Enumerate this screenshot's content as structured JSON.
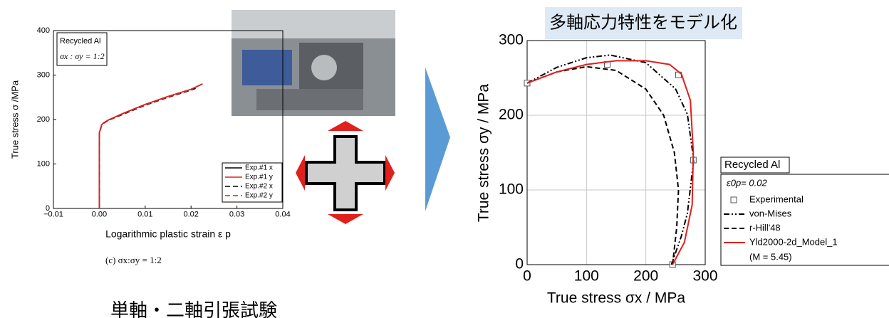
{
  "chart_data": [
    {
      "type": "line",
      "title": "Recycled Al",
      "subtitle": "σx : σy = 1:2",
      "x_label": "Logarithmic plastic strain ε p",
      "y_label": "True stress σ /MPa",
      "caption": "(c) σx:σy = 1:2",
      "xlim": [
        -0.01,
        0.04
      ],
      "xticks": [
        {
          "value": -0.01,
          "label": "−0.01"
        },
        {
          "value": 0,
          "label": "0.00"
        },
        0.01,
        0.02,
        0.03,
        0.04
      ],
      "ylim": [
        0,
        400
      ],
      "yticks": [
        0,
        100,
        200,
        300,
        400
      ],
      "grid": false,
      "legend": "lower right",
      "series": [
        {
          "name": "Exp.#1 x",
          "color": "#000000",
          "linestyle": "solid",
          "x": [
            0,
            0,
            0,
            0.0005,
            0.001,
            0.002,
            0.005,
            0.01,
            0.015,
            0.02,
            0.0225
          ],
          "values": [
            0,
            100,
            170,
            188,
            193,
            199,
            213,
            234,
            252,
            268,
            280
          ]
        },
        {
          "name": "Exp.#2 x",
          "color": "#000000",
          "linestyle": "dashed",
          "x": [
            0,
            0,
            0,
            0.0005,
            0.001,
            0.002,
            0.005,
            0.01,
            0.015,
            0.02,
            0.021
          ],
          "values": [
            0,
            100,
            168,
            186,
            192,
            198,
            211,
            232,
            250,
            266,
            270
          ]
        },
        {
          "name": "Exp.#1 y",
          "color": "#e0201b",
          "linestyle": "solid",
          "x": [
            0,
            0,
            0,
            0.0005,
            0.001,
            0.002,
            0.005,
            0.01,
            0.015,
            0.02,
            0.0225
          ],
          "values": [
            0,
            100,
            170,
            188,
            193,
            199,
            213,
            234,
            252,
            268,
            280
          ]
        },
        {
          "name": "Exp.#2 y",
          "color": "#e0201b",
          "linestyle": "dashed",
          "x": [
            0,
            0,
            0,
            0.0005,
            0.001,
            0.002,
            0.005,
            0.01,
            0.015,
            0.02,
            0.0205
          ],
          "values": [
            0,
            100,
            168,
            187,
            192,
            198,
            212,
            233,
            251,
            267,
            269
          ]
        }
      ]
    },
    {
      "type": "line",
      "title": "多軸応力特性をモデル化",
      "x_label": "True stress σx / MPa",
      "y_label": "True stress σy / MPa",
      "legend_title": "Recycled Al",
      "legend_note": "ε0p= 0.02",
      "legend_param": "(M = 5.45)",
      "xlim": [
        0,
        300
      ],
      "xticks": [
        0,
        100,
        200,
        300
      ],
      "ylim": [
        0,
        300
      ],
      "yticks": [
        0,
        100,
        200,
        300
      ],
      "grid": true,
      "legend": "right",
      "series": [
        {
          "name": "Experimental",
          "color": "#555555",
          "linestyle": "none",
          "marker": "square",
          "x": [
            0,
            135,
            255,
            280,
            245
          ],
          "values": [
            243,
            268,
            254,
            140,
            0
          ]
        },
        {
          "name": "von-Mises",
          "color": "#000000",
          "linestyle": "dashdotdot",
          "x": [
            0,
            50,
            100,
            140,
            200,
            250,
            270,
            280.6,
            270,
            260,
            243
          ],
          "values": [
            243,
            264.1,
            277,
            280.6,
            270.4,
            235.3,
            201.1,
            140.3,
            68.9,
            38.6,
            0
          ]
        },
        {
          "name": "r-Hill'48",
          "color": "#000000",
          "linestyle": "dashed",
          "x": [
            0,
            50,
            100,
            150,
            200,
            230,
            248,
            255,
            252,
            245
          ],
          "values": [
            243,
            258,
            265,
            260,
            235,
            200,
            150,
            100,
            50,
            0
          ]
        },
        {
          "name": "Yld2000-2d_Model_1",
          "color": "#e0201b",
          "linestyle": "solid",
          "x": [
            0,
            50,
            100,
            150,
            200,
            240,
            260,
            275,
            280,
            278,
            265,
            245
          ],
          "values": [
            243,
            258,
            268,
            273,
            273,
            268,
            255,
            220,
            150,
            80,
            30,
            0
          ]
        }
      ]
    }
  ],
  "test_title": "単軸・二軸引張試験"
}
